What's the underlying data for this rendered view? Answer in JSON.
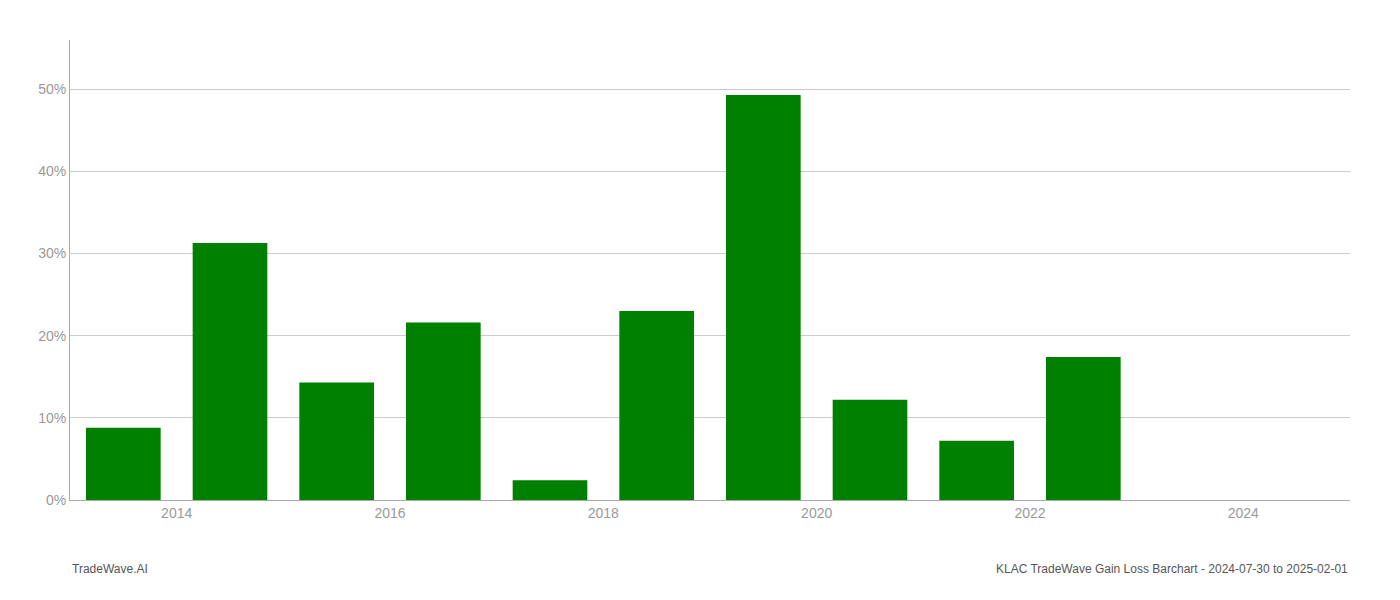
{
  "chart_data": {
    "type": "bar",
    "x": [
      2013.5,
      2014.5,
      2015.5,
      2016.5,
      2017.5,
      2018.5,
      2019.5,
      2020.5,
      2021.5,
      2022.5
    ],
    "values": [
      0.088,
      0.313,
      0.143,
      0.216,
      0.024,
      0.23,
      0.493,
      0.122,
      0.072,
      0.174
    ],
    "color": "#008000",
    "xlim": [
      2013.0,
      2025.0
    ],
    "xticks": [
      2014,
      2016,
      2018,
      2020,
      2022,
      2024
    ],
    "ylim": [
      0,
      0.56
    ],
    "yticks": [
      {
        "value": 0.0,
        "label": "0%"
      },
      {
        "value": 0.1,
        "label": "10%"
      },
      {
        "value": 0.2,
        "label": "20%"
      },
      {
        "value": 0.3,
        "label": "30%"
      },
      {
        "value": 0.4,
        "label": "40%"
      },
      {
        "value": 0.5,
        "label": "50%"
      }
    ],
    "grid": true,
    "annotations": [
      "TradeWave.AI",
      "KLAC TradeWave Gain Loss Barchart - 2024-07-30 to 2025-02-01"
    ]
  }
}
